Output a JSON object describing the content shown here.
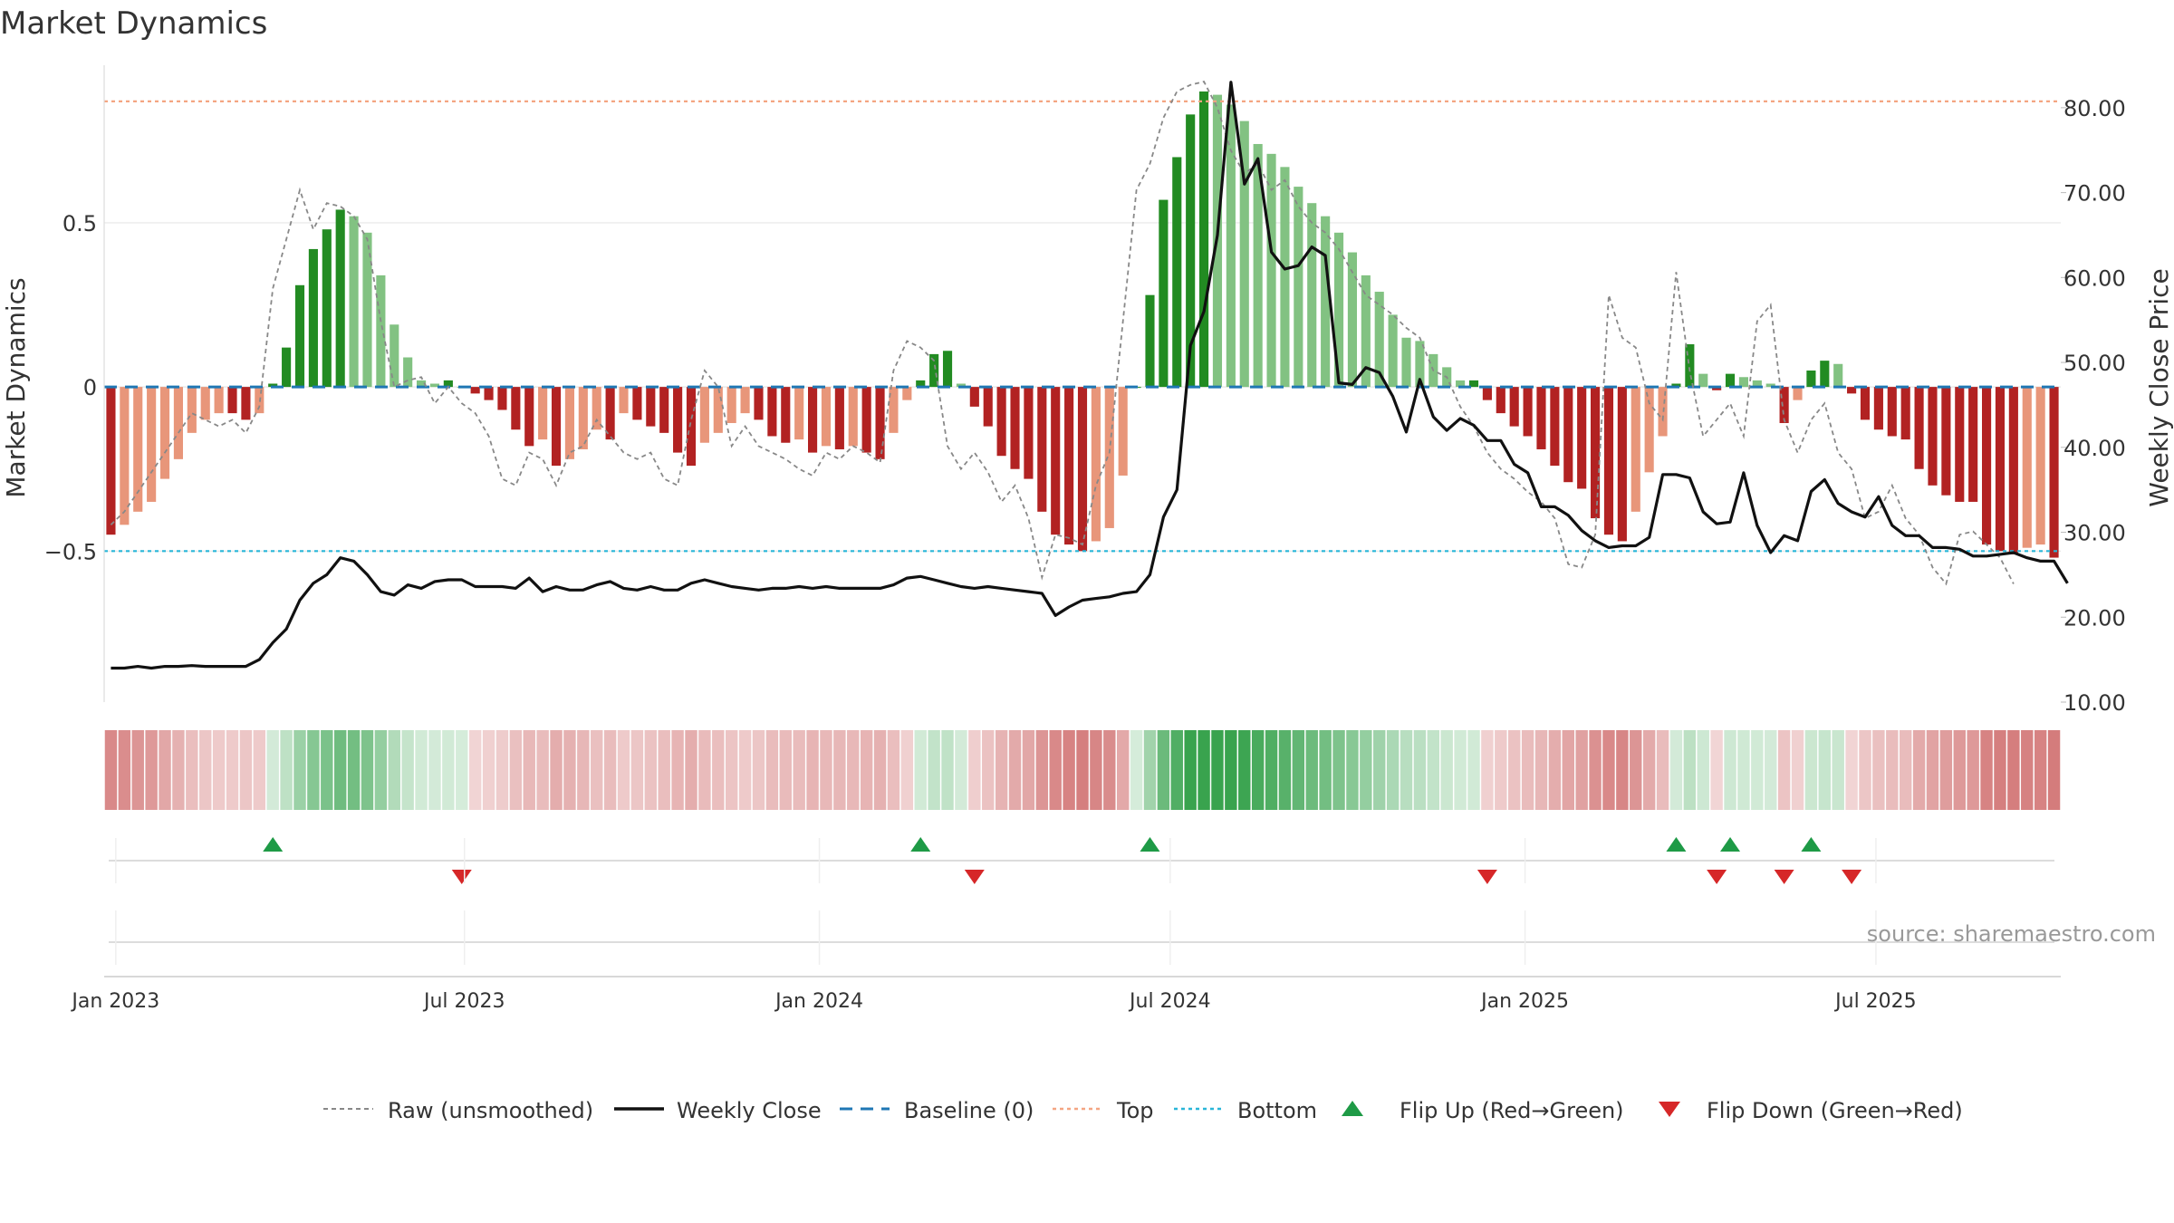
{
  "chart_data": {
    "type": "bar",
    "title": "Market Dynamics",
    "ylabel": "Market Dynamics",
    "y2label": "Weekly Close Price",
    "source": "source: sharemaestro.com",
    "ylim": [
      -0.96,
      0.98
    ],
    "y2lim": [
      10,
      85
    ],
    "yticks": [
      -0.5,
      0,
      0.5
    ],
    "ytick_labels": [
      "−0.5",
      "0",
      "0.5"
    ],
    "y2ticks": [
      10,
      20,
      30,
      40,
      50,
      60,
      70,
      80
    ],
    "y2tick_labels": [
      "10.00",
      "20.00",
      "30.00",
      "40.00",
      "50.00",
      "60.00",
      "70.00",
      "80.00"
    ],
    "start_date": "2022-12-26",
    "xticks": [
      {
        "label": "Jan 2023",
        "week": 0.86
      },
      {
        "label": "Jul 2023",
        "week": 26.7
      },
      {
        "label": "Jan 2024",
        "week": 53.0
      },
      {
        "label": "Jul 2024",
        "week": 79.0
      },
      {
        "label": "Jan 2025",
        "week": 105.3
      },
      {
        "label": "Jul 2025",
        "week": 131.3
      }
    ],
    "top_level": 0.87,
    "bottom_level": -0.5,
    "baseline": 0,
    "momentum": [
      -0.45,
      -0.42,
      -0.38,
      -0.35,
      -0.28,
      -0.22,
      -0.14,
      -0.1,
      -0.08,
      -0.08,
      -0.1,
      -0.08,
      0.01,
      0.12,
      0.31,
      0.42,
      0.48,
      0.54,
      0.52,
      0.47,
      0.34,
      0.19,
      0.09,
      0.02,
      0.01,
      0.02,
      0,
      -0.02,
      -0.04,
      -0.07,
      -0.13,
      -0.18,
      -0.16,
      -0.24,
      -0.22,
      -0.19,
      -0.13,
      -0.16,
      -0.08,
      -0.1,
      -0.12,
      -0.14,
      -0.2,
      -0.24,
      -0.17,
      -0.14,
      -0.11,
      -0.08,
      -0.1,
      -0.15,
      -0.17,
      -0.16,
      -0.2,
      -0.18,
      -0.19,
      -0.18,
      -0.2,
      -0.22,
      -0.14,
      -0.04,
      0.02,
      0.1,
      0.11,
      0.01,
      -0.06,
      -0.12,
      -0.21,
      -0.25,
      -0.28,
      -0.38,
      -0.45,
      -0.48,
      -0.5,
      -0.47,
      -0.43,
      -0.27,
      0,
      0.28,
      0.57,
      0.7,
      0.83,
      0.9,
      0.89,
      0.86,
      0.81,
      0.74,
      0.71,
      0.67,
      0.61,
      0.56,
      0.52,
      0.47,
      0.41,
      0.34,
      0.29,
      0.22,
      0.15,
      0.14,
      0.1,
      0.06,
      0.02,
      0.02,
      -0.04,
      -0.08,
      -0.12,
      -0.15,
      -0.19,
      -0.24,
      -0.29,
      -0.31,
      -0.4,
      -0.45,
      -0.47,
      -0.38,
      -0.26,
      -0.15,
      0.01,
      0.13,
      0.04,
      -0.01,
      0.04,
      0.03,
      0.02,
      0.01,
      -0.11,
      -0.04,
      0.05,
      0.08,
      0.07,
      -0.02,
      -0.1,
      -0.13,
      -0.15,
      -0.16,
      -0.25,
      -0.3,
      -0.33,
      -0.35,
      -0.35,
      -0.48,
      -0.5,
      -0.51,
      -0.49,
      -0.48,
      -0.52
    ],
    "raw": [
      -0.42,
      -0.38,
      -0.32,
      -0.26,
      -0.2,
      -0.14,
      -0.08,
      -0.1,
      -0.12,
      -0.1,
      -0.14,
      -0.06,
      0.3,
      0.45,
      0.6,
      0.48,
      0.56,
      0.55,
      0.52,
      0.45,
      0.2,
      0,
      0.02,
      0.03,
      -0.05,
      0,
      -0.05,
      -0.08,
      -0.15,
      -0.28,
      -0.3,
      -0.2,
      -0.22,
      -0.3,
      -0.2,
      -0.18,
      -0.1,
      -0.15,
      -0.2,
      -0.22,
      -0.2,
      -0.28,
      -0.3,
      -0.1,
      0.05,
      0,
      -0.18,
      -0.12,
      -0.18,
      -0.2,
      -0.22,
      -0.25,
      -0.27,
      -0.2,
      -0.22,
      -0.18,
      -0.2,
      -0.23,
      0.05,
      0.14,
      0.12,
      0.08,
      -0.18,
      -0.25,
      -0.2,
      -0.26,
      -0.35,
      -0.3,
      -0.4,
      -0.58,
      -0.45,
      -0.46,
      -0.48,
      -0.3,
      -0.2,
      0.2,
      0.6,
      0.68,
      0.82,
      0.9,
      0.92,
      0.93,
      0.85,
      0.72,
      0.65,
      0.68,
      0.6,
      0.63,
      0.55,
      0.5,
      0.47,
      0.42,
      0.35,
      0.28,
      0.25,
      0.22,
      0.18,
      0.15,
      0.05,
      0.03,
      -0.06,
      -0.12,
      -0.2,
      -0.25,
      -0.28,
      -0.32,
      -0.35,
      -0.4,
      -0.54,
      -0.55,
      -0.45,
      0.28,
      0.15,
      0.12,
      -0.05,
      -0.1,
      0.35,
      0.05,
      -0.15,
      -0.1,
      -0.05,
      -0.15,
      0.2,
      0.25,
      -0.1,
      -0.2,
      -0.1,
      -0.05,
      -0.2,
      -0.25,
      -0.4,
      -0.38,
      -0.3,
      -0.4,
      -0.45,
      -0.55,
      -0.6,
      -0.45,
      -0.44,
      -0.48,
      -0.52,
      -0.6
    ],
    "close": [
      14,
      14,
      14.2,
      14,
      14.2,
      14.2,
      14.3,
      14.2,
      14.2,
      14.2,
      14.2,
      15,
      17,
      18.6,
      22,
      24,
      25,
      27,
      26.6,
      25,
      23,
      22.6,
      23.8,
      23.4,
      24.2,
      24.4,
      24.4,
      23.6,
      23.6,
      23.6,
      23.4,
      24.6,
      23,
      23.6,
      23.2,
      23.2,
      23.8,
      24.2,
      23.4,
      23.2,
      23.6,
      23.2,
      23.2,
      24,
      24.4,
      24,
      23.6,
      23.4,
      23.2,
      23.4,
      23.4,
      23.6,
      23.4,
      23.6,
      23.4,
      23.4,
      23.4,
      23.4,
      23.8,
      24.6,
      24.8,
      24.4,
      24,
      23.6,
      23.4,
      23.6,
      23.4,
      23.2,
      23,
      22.8,
      20.2,
      21.2,
      22,
      22.2,
      22.4,
      22.8,
      23,
      25,
      31.8,
      35,
      52,
      56,
      65,
      83,
      71,
      74,
      63,
      61,
      61.4,
      63.6,
      62.6,
      47.6,
      47.4,
      49.4,
      48.8,
      46,
      41.8,
      48,
      43.6,
      42,
      43.4,
      42.6,
      40.8,
      40.8,
      38,
      37,
      33,
      33,
      32,
      30.2,
      29,
      28.2,
      28.4,
      28.4,
      29.4,
      36.8,
      36.8,
      36.4,
      32.4,
      31,
      31.2,
      37,
      30.8,
      27.6,
      29.6,
      29,
      34.8,
      36.2,
      33.4,
      32.4,
      31.8,
      34.2,
      30.8,
      29.6,
      29.6,
      28.2,
      28.2,
      28,
      27.2,
      27.2,
      27.4,
      27.6,
      27,
      26.6,
      26.6,
      24
    ]
  },
  "chart_labels": {
    "legend": {
      "raw": "Raw (unsmoothed)",
      "close": "Weekly Close",
      "baseline": "Baseline (0)",
      "top": "Top",
      "bottom": "Bottom",
      "flip_up": "Flip Up (Red→Green)",
      "flip_down": "Flip Down (Green→Red)"
    }
  },
  "colors": {
    "strong_green": "#228B22",
    "light_green": "#82C282",
    "strong_red": "#B22222",
    "light_red": "#E8967A",
    "close_line": "#111111",
    "raw_line": "#888888",
    "baseline": "#1F77B4",
    "top_line": "#F4A582",
    "bottom_line": "#29B6D8",
    "flip_up": "#1E9A46",
    "flip_down": "#D62728",
    "source": "#999999"
  }
}
